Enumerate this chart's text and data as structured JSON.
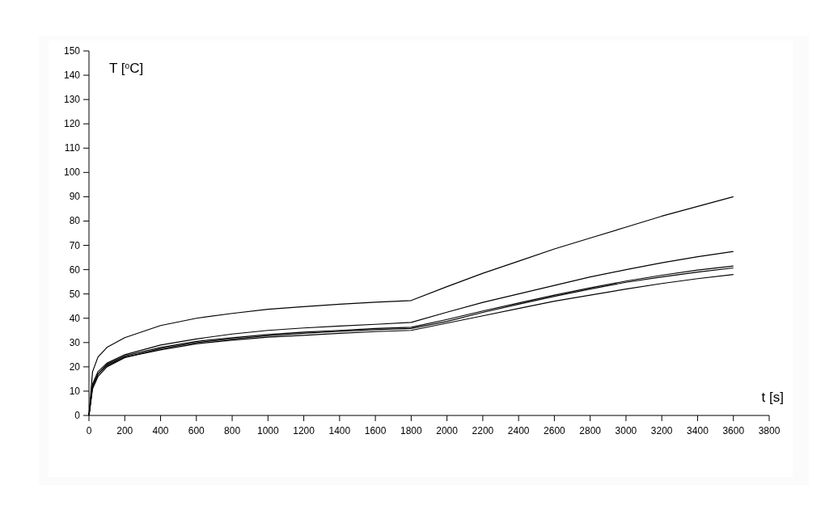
{
  "chart_data": {
    "type": "line",
    "xlabel": "t [s]",
    "ylabel": "T [$^{o}$C]",
    "xlim": [
      0,
      3800
    ],
    "ylim": [
      0,
      150
    ],
    "xticks": [
      0,
      200,
      400,
      600,
      800,
      1000,
      1200,
      1400,
      1600,
      1800,
      2000,
      2200,
      2400,
      2600,
      2800,
      3000,
      3200,
      3400,
      3600,
      3800
    ],
    "yticks": [
      0,
      10,
      20,
      30,
      40,
      50,
      60,
      70,
      80,
      90,
      100,
      110,
      120,
      130,
      140,
      150
    ],
    "grid": false,
    "marker": "none",
    "line_style": "solid",
    "x": [
      0,
      20,
      50,
      100,
      200,
      400,
      600,
      800,
      1000,
      1200,
      1400,
      1600,
      1800,
      2000,
      2200,
      2400,
      2600,
      2800,
      3000,
      3200,
      3400,
      3600
    ],
    "series": [
      {
        "color": "#000000",
        "values": [
          0,
          18,
          24,
          28,
          32,
          37,
          40,
          42,
          43.7,
          44.8,
          45.8,
          46.6,
          47.3,
          53,
          58.5,
          63.5,
          68.5,
          73,
          77.5,
          82,
          86,
          90
        ]
      },
      {
        "color": "#000000",
        "values": [
          0,
          13,
          18,
          21.5,
          25,
          29,
          31.5,
          33.5,
          35,
          36,
          36.8,
          37.5,
          38.3,
          42.5,
          46.5,
          50,
          53.5,
          57,
          60,
          62.8,
          65.3,
          67.5
        ]
      },
      {
        "color": "#000000",
        "values": [
          0,
          12,
          17,
          21,
          24.5,
          28,
          30.5,
          32,
          33.3,
          34.3,
          35,
          35.8,
          36.3,
          39.5,
          43,
          46.3,
          49.5,
          52.5,
          55.3,
          57.7,
          59.8,
          61.5
        ]
      },
      {
        "color": "#000000",
        "values": [
          0,
          11,
          16,
          20,
          23.8,
          27.5,
          30,
          31.5,
          32.8,
          33.8,
          34.6,
          35.3,
          35.8,
          38.7,
          42.4,
          45.8,
          49,
          52,
          54.8,
          57,
          59,
          60.7
        ]
      },
      {
        "color": "#000000",
        "values": [
          0,
          12,
          17,
          20.5,
          24,
          27,
          29.5,
          31,
          32.2,
          33,
          33.8,
          34.5,
          35,
          38,
          41,
          44,
          47,
          49.5,
          52,
          54.3,
          56.3,
          58
        ]
      }
    ]
  }
}
